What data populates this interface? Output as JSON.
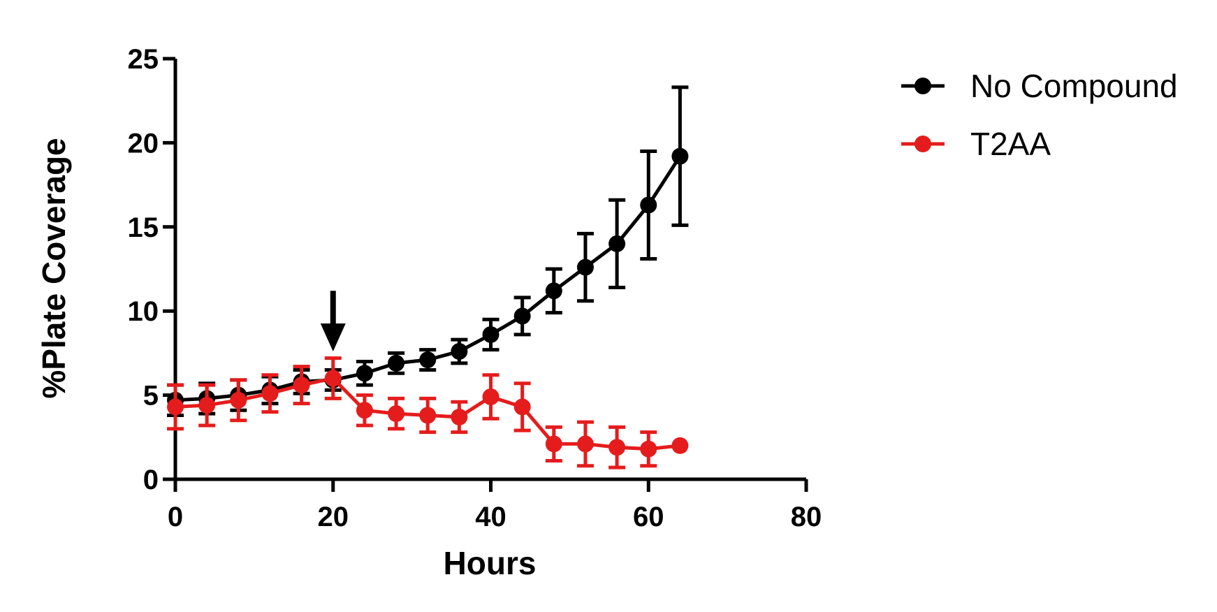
{
  "chart_data": {
    "type": "line",
    "xlabel": "Hours",
    "ylabel": "%Plate Coverage",
    "xlim": [
      0,
      80
    ],
    "ylim": [
      0,
      25
    ],
    "xticks": [
      0,
      20,
      40,
      60,
      80
    ],
    "yticks": [
      0,
      5,
      10,
      15,
      20,
      25
    ],
    "xtick_labels": [
      "0",
      "20",
      "40",
      "60",
      "80"
    ],
    "ytick_labels": [
      "0",
      "5",
      "10",
      "15",
      "20",
      "25"
    ],
    "grid": false,
    "legend_position": "top-right",
    "annotation": {
      "type": "arrow",
      "x": 20,
      "y_from": 11.2,
      "y_to": 7.6
    },
    "series": [
      {
        "name": "No Compound",
        "color": "#000000",
        "x": [
          0,
          4,
          8,
          12,
          16,
          20,
          24,
          28,
          32,
          36,
          40,
          44,
          48,
          52,
          56,
          60,
          64
        ],
        "y": [
          4.7,
          4.8,
          5.0,
          5.3,
          5.8,
          5.9,
          6.3,
          6.9,
          7.1,
          7.6,
          8.6,
          9.7,
          11.2,
          12.6,
          14.0,
          16.3,
          19.2
        ],
        "err": [
          0.9,
          0.9,
          0.9,
          0.8,
          0.7,
          0.6,
          0.7,
          0.6,
          0.6,
          0.7,
          0.9,
          1.1,
          1.3,
          2.0,
          2.6,
          3.2,
          4.1
        ]
      },
      {
        "name": "T2AA",
        "color": "#e51c1c",
        "x": [
          0,
          4,
          8,
          12,
          16,
          20,
          24,
          28,
          32,
          36,
          40,
          44,
          48,
          52,
          56,
          60,
          64
        ],
        "y": [
          4.3,
          4.4,
          4.7,
          5.1,
          5.6,
          6.0,
          4.1,
          3.9,
          3.8,
          3.7,
          4.9,
          4.3,
          2.1,
          2.1,
          1.9,
          1.8,
          2.0
        ],
        "err": [
          1.3,
          1.2,
          1.2,
          1.1,
          1.1,
          1.2,
          0.9,
          0.9,
          1.0,
          0.9,
          1.3,
          1.4,
          1.0,
          1.3,
          1.2,
          1.0,
          0.0
        ]
      }
    ]
  }
}
